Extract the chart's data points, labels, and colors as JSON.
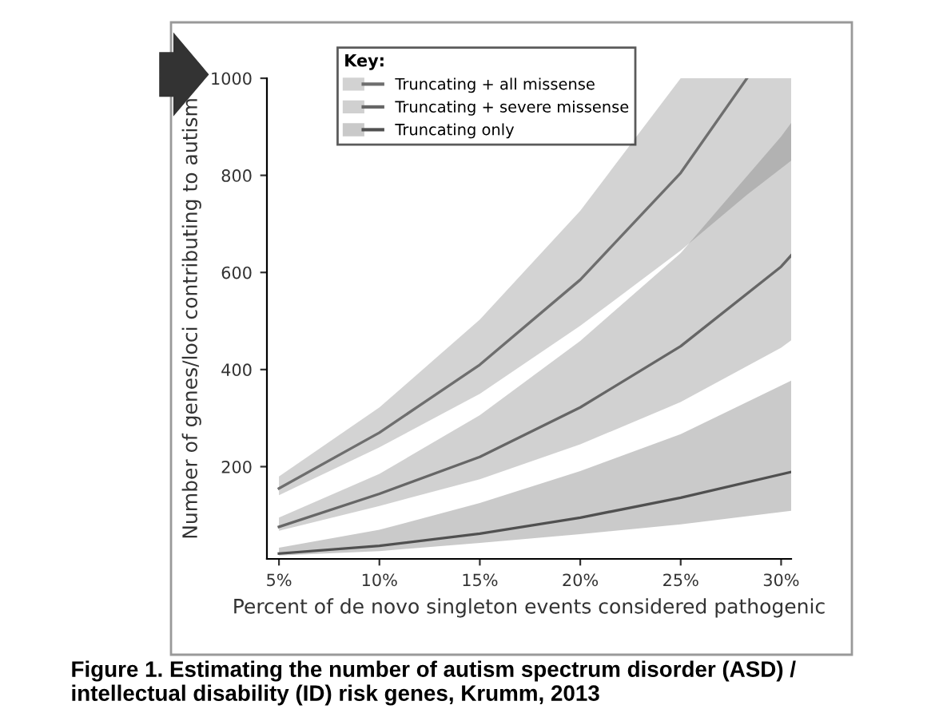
{
  "chart_data": {
    "type": "line",
    "xlabel": "Percent of de novo singleton events considered pathogenic",
    "ylabel": "Number of genes/loci contributing to autism",
    "legend_title": "Key:",
    "legend": "top left",
    "grid": false,
    "marker": "none",
    "line_style": "solid",
    "xlim": [
      4.4,
      30.5
    ],
    "ylim": [
      10,
      1000
    ],
    "xticks": [
      {
        "value": 5,
        "label": "5%"
      },
      {
        "value": 10,
        "label": "10%"
      },
      {
        "value": 15,
        "label": "15%"
      },
      {
        "value": 20,
        "label": "20%"
      },
      {
        "value": 25,
        "label": "25%"
      },
      {
        "value": 30,
        "label": "30%"
      }
    ],
    "yticks": [
      200,
      400,
      600,
      800,
      1000
    ],
    "series": [
      {
        "name": "Truncating + all missense",
        "color": "#6e6e6e",
        "x": [
          5,
          10,
          15,
          20,
          25,
          28.3,
          30.5
        ],
        "values": [
          155,
          270,
          410,
          585,
          805,
          1000,
          null
        ],
        "lower": [
          141,
          240,
          350,
          490,
          645,
          760,
          830
        ],
        "upper": [
          180,
          322,
          503,
          727,
          1000,
          1000,
          1000
        ]
      },
      {
        "name": "Truncating + severe missense",
        "color": "#666666",
        "x": [
          5,
          10,
          15,
          20,
          25,
          30,
          30.5
        ],
        "values": [
          76,
          144,
          220,
          322,
          448,
          612,
          635
        ],
        "lower": [
          68,
          119,
          174,
          246,
          333,
          445,
          460
        ],
        "upper": [
          95,
          185,
          306,
          459,
          640,
          880,
          908
        ]
      },
      {
        "name": "Truncating only",
        "color": "#505050",
        "x": [
          5,
          10,
          15,
          20,
          25,
          30.5
        ],
        "values": [
          21,
          37,
          62,
          95,
          136,
          189
        ],
        "lower": [
          17,
          26,
          43,
          61,
          81,
          109
        ],
        "upper": [
          33,
          70,
          125,
          191,
          267,
          377
        ]
      }
    ],
    "annotations": [
      "Figure 1. Estimating the number of autism spectrum disorder (ASD) /\nintellectual disability (ID) risk genes, Krumm, 2013"
    ]
  }
}
